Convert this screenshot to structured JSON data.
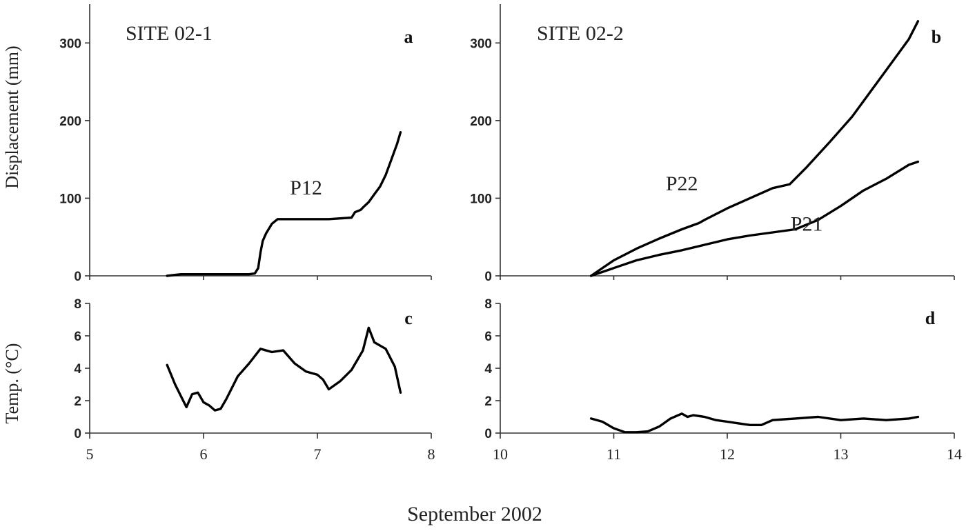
{
  "figure": {
    "shared_xlabel": "September 2002",
    "ylabel_displacement": "Displacement (mm)",
    "ylabel_temperature": "Temp. (°C)"
  },
  "chart_data": [
    {
      "id": "a",
      "type": "line",
      "panel_letter": "a",
      "site_label": "SITE 02-1",
      "xlim": [
        5,
        8
      ],
      "ylim": [
        0,
        350
      ],
      "yticks": [
        0,
        100,
        200,
        300
      ],
      "series": [
        {
          "name": "P12",
          "x": [
            5.68,
            5.8,
            6.0,
            6.2,
            6.4,
            6.45,
            6.48,
            6.5,
            6.52,
            6.55,
            6.6,
            6.65,
            6.7,
            6.9,
            7.1,
            7.3,
            7.33,
            7.38,
            7.4,
            7.45,
            7.5,
            7.55,
            7.6,
            7.65,
            7.7,
            7.73
          ],
          "y": [
            0,
            2,
            2,
            2,
            2,
            3,
            10,
            30,
            45,
            55,
            67,
            73,
            73,
            73,
            73,
            75,
            82,
            85,
            88,
            95,
            105,
            115,
            130,
            150,
            170,
            185
          ]
        }
      ]
    },
    {
      "id": "b",
      "type": "line",
      "panel_letter": "b",
      "site_label": "SITE 02-2",
      "xlim": [
        10,
        14
      ],
      "ylim": [
        0,
        350
      ],
      "yticks": [
        0,
        100,
        200,
        300
      ],
      "series": [
        {
          "name": "P22",
          "x": [
            10.8,
            11.0,
            11.2,
            11.4,
            11.6,
            11.75,
            11.8,
            12.0,
            12.2,
            12.4,
            12.55,
            12.7,
            12.9,
            13.1,
            13.3,
            13.5,
            13.6,
            13.68
          ],
          "y": [
            0,
            20,
            35,
            48,
            60,
            68,
            72,
            87,
            100,
            113,
            118,
            140,
            172,
            205,
            245,
            285,
            305,
            328
          ]
        },
        {
          "name": "P21",
          "x": [
            10.8,
            11.0,
            11.2,
            11.4,
            11.6,
            11.8,
            12.0,
            12.2,
            12.4,
            12.6,
            12.8,
            13.0,
            13.2,
            13.4,
            13.6,
            13.68
          ],
          "y": [
            0,
            10,
            20,
            27,
            33,
            40,
            47,
            52,
            56,
            60,
            72,
            90,
            110,
            125,
            143,
            147
          ]
        }
      ]
    },
    {
      "id": "c",
      "type": "line",
      "panel_letter": "c",
      "xlim": [
        5,
        8
      ],
      "ylim": [
        0,
        8
      ],
      "xticks": [
        5,
        6,
        7,
        8
      ],
      "yticks": [
        0,
        2,
        4,
        6,
        8
      ],
      "series": [
        {
          "name": "",
          "x": [
            5.68,
            5.75,
            5.8,
            5.85,
            5.9,
            5.95,
            6.0,
            6.05,
            6.1,
            6.15,
            6.2,
            6.3,
            6.4,
            6.5,
            6.6,
            6.7,
            6.8,
            6.9,
            7.0,
            7.05,
            7.1,
            7.2,
            7.3,
            7.4,
            7.45,
            7.5,
            7.6,
            7.68,
            7.73
          ],
          "y": [
            4.2,
            3.0,
            2.3,
            1.6,
            2.4,
            2.5,
            1.9,
            1.7,
            1.4,
            1.5,
            2.1,
            3.5,
            4.3,
            5.2,
            5.0,
            5.1,
            4.3,
            3.8,
            3.6,
            3.3,
            2.7,
            3.2,
            3.9,
            5.1,
            6.5,
            5.6,
            5.2,
            4.1,
            2.5
          ]
        }
      ]
    },
    {
      "id": "d",
      "type": "line",
      "panel_letter": "d",
      "xlim": [
        10,
        14
      ],
      "ylim": [
        0,
        8
      ],
      "xticks": [
        10,
        11,
        12,
        13,
        14
      ],
      "yticks": [
        0,
        2,
        4,
        6,
        8
      ],
      "series": [
        {
          "name": "",
          "x": [
            10.8,
            10.9,
            11.0,
            11.1,
            11.2,
            11.3,
            11.4,
            11.5,
            11.6,
            11.65,
            11.7,
            11.8,
            11.9,
            12.0,
            12.1,
            12.2,
            12.3,
            12.4,
            12.6,
            12.8,
            13.0,
            13.2,
            13.4,
            13.6,
            13.68
          ],
          "y": [
            0.9,
            0.7,
            0.3,
            0.05,
            0.05,
            0.1,
            0.4,
            0.9,
            1.2,
            1.0,
            1.1,
            1.0,
            0.8,
            0.7,
            0.6,
            0.5,
            0.5,
            0.8,
            0.9,
            1.0,
            0.8,
            0.9,
            0.8,
            0.9,
            1.0
          ]
        }
      ]
    }
  ]
}
